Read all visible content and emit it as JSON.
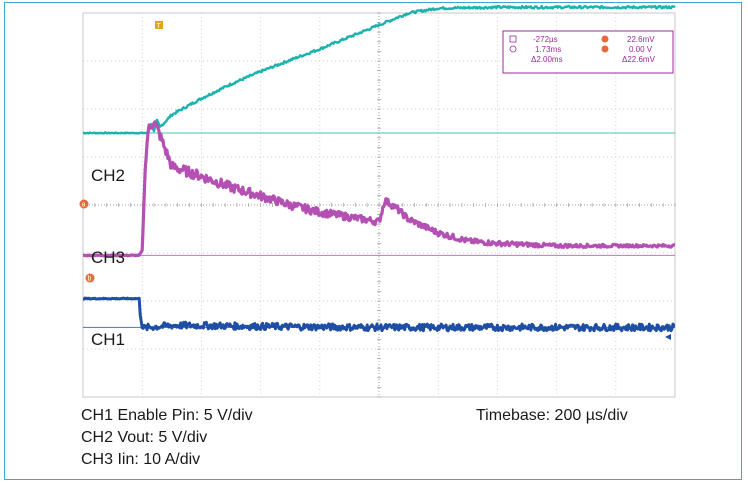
{
  "chart_data": {
    "type": "line",
    "title": "",
    "grid": true,
    "x_divisions": 10,
    "y_divisions": 8,
    "time_per_div_us": 200,
    "trigger_marker": "T",
    "series": [
      {
        "name": "CH2",
        "color": "#1db3ad",
        "offset_div": 2.5,
        "x_div": [
          0,
          1.1,
          1.15,
          1.2,
          1.25,
          1.3,
          1.5,
          2,
          2.5,
          3,
          3.5,
          4,
          4.5,
          5,
          5.5,
          6,
          7,
          8,
          9,
          10
        ],
        "y_div": [
          0,
          0,
          0.2,
          0.05,
          0.25,
          0.12,
          0.38,
          0.72,
          1.02,
          1.28,
          1.52,
          1.75,
          2.0,
          2.25,
          2.5,
          2.6,
          2.62,
          2.62,
          2.62,
          2.62
        ]
      },
      {
        "name": "CH3",
        "color": "#b44fb4",
        "offset_div": 5.05,
        "x_div": [
          0,
          0.95,
          1.0,
          1.05,
          1.1,
          1.2,
          1.3,
          1.5,
          2,
          2.5,
          3,
          3.5,
          4,
          4.5,
          5,
          5.1,
          5.3,
          5.5,
          6,
          6.5,
          7,
          8,
          9,
          10
        ],
        "y_div": [
          0,
          0,
          0.1,
          1.8,
          2.6,
          2.8,
          2.5,
          1.85,
          1.65,
          1.42,
          1.24,
          1.05,
          0.9,
          0.8,
          0.7,
          1.15,
          0.98,
          0.75,
          0.47,
          0.3,
          0.25,
          0.2,
          0.2,
          0.2
        ]
      },
      {
        "name": "CH1",
        "color": "#1f4fa5",
        "offset_div": 6.55,
        "x_div": [
          0,
          0.95,
          0.96,
          1.0,
          1.05,
          1.1,
          1.5,
          2,
          3,
          4,
          5,
          6,
          7,
          8,
          9,
          10
        ],
        "y_div": [
          0.6,
          0.6,
          0.32,
          0,
          -0.02,
          0,
          0.04,
          0.04,
          0.02,
          0.01,
          0,
          0,
          0,
          0,
          0,
          0
        ]
      }
    ],
    "cursor_readout": {
      "row1": [
        "-272µs",
        "22.6mV"
      ],
      "row2": [
        "1.73ms",
        "0.00 V"
      ],
      "row3": [
        "Δ2.00ms",
        "Δ22.6mV"
      ],
      "marker_a": "a",
      "marker_b": "b"
    },
    "caption_left": [
      "CH1 Enable Pin: 5 V/div",
      "CH2 Vout: 5 V/div",
      "CH3 Iin: 10 A/div"
    ],
    "caption_right": "Timebase: 200 µs/div"
  }
}
